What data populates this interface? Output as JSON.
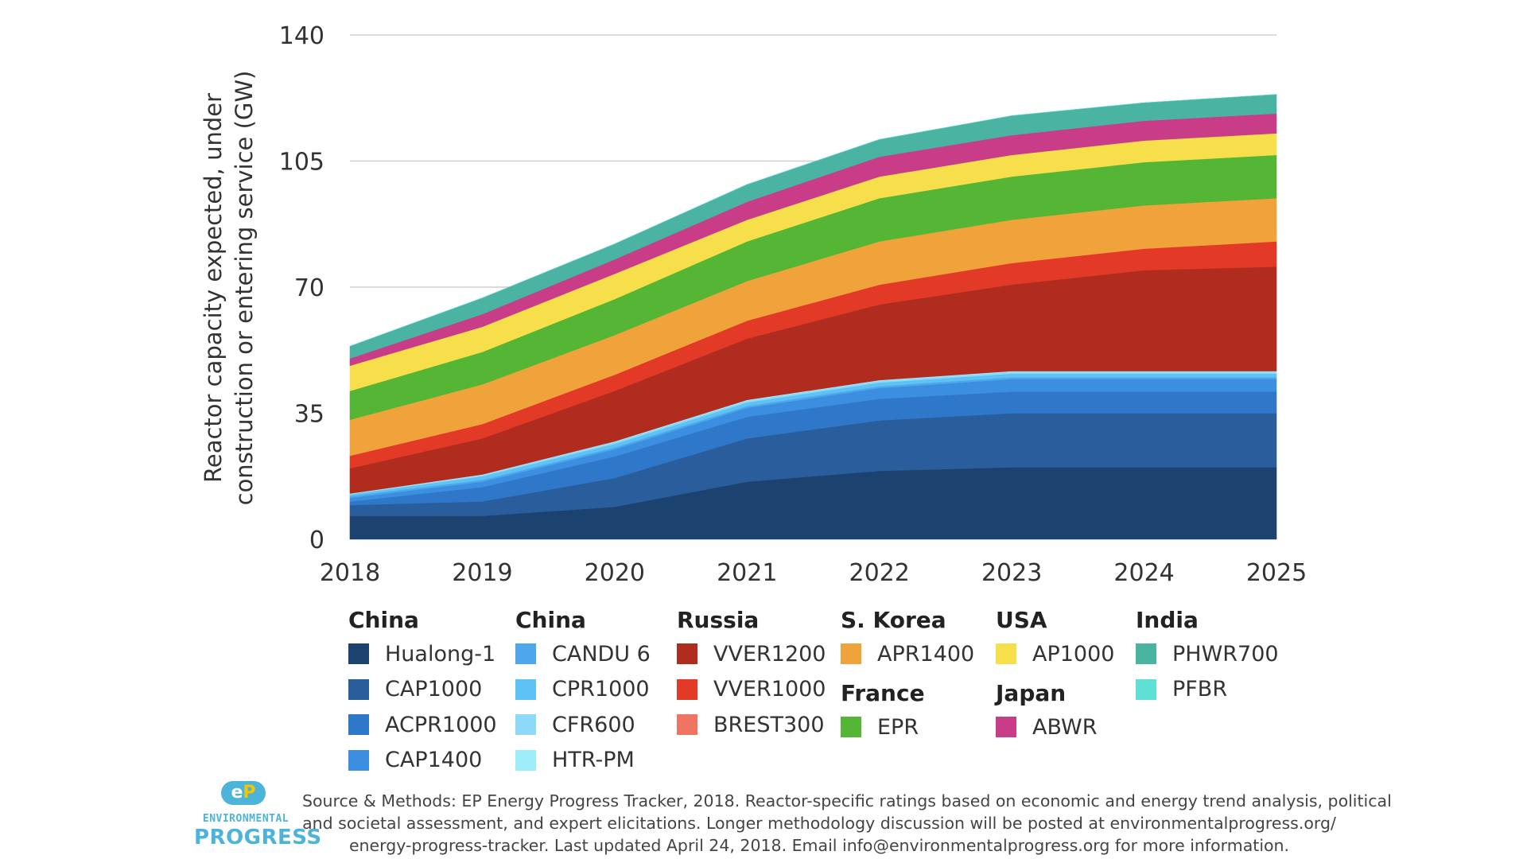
{
  "chart_data": {
    "type": "area",
    "stacked": true,
    "x": [
      2018,
      2019,
      2020,
      2021,
      2022,
      2023,
      2024,
      2025
    ],
    "x_tick_labels": [
      "2018",
      "2019",
      "2020",
      "2021",
      "2022",
      "2023",
      "2024",
      "2025"
    ],
    "ylabel_line1": "Reactor capacity expected, under",
    "ylabel_line2": "construction or entering service (GW)",
    "ylim": [
      0,
      140
    ],
    "y_ticks": [
      0,
      35,
      70,
      105,
      140
    ],
    "y_tick_labels": [
      "0",
      "35",
      "70",
      "105",
      "140"
    ],
    "grid": true,
    "series": [
      {
        "name": "Hualong-1",
        "country": "China",
        "color": "#1c4370",
        "values": [
          6.5,
          6.5,
          9,
          16,
          19,
          20,
          20,
          20
        ]
      },
      {
        "name": "CAP1000",
        "country": "China",
        "color": "#2a5d9c",
        "values": [
          3,
          4,
          8,
          12,
          14,
          15,
          15,
          15
        ]
      },
      {
        "name": "ACPR1000",
        "country": "China",
        "color": "#2f77c9",
        "values": [
          1,
          4,
          6,
          6,
          6,
          6,
          6,
          6
        ]
      },
      {
        "name": "CAP1400",
        "country": "China",
        "color": "#3c8fe0",
        "values": [
          1,
          1.5,
          2,
          2.5,
          3,
          3.5,
          3.5,
          3.5
        ]
      },
      {
        "name": "CANDU 6",
        "country": "China",
        "color": "#4ea6ec",
        "values": [
          0.5,
          0.5,
          0.5,
          0.5,
          0.5,
          0.5,
          0.5,
          0.5
        ]
      },
      {
        "name": "CPR1000",
        "country": "China",
        "color": "#5ec2f5",
        "values": [
          0.5,
          1,
          1,
          1,
          1,
          1,
          1,
          1
        ]
      },
      {
        "name": "CFR600",
        "country": "China",
        "color": "#8ed8f8",
        "values": [
          0,
          0.3,
          0.5,
          0.5,
          0.5,
          0.5,
          0.5,
          0.5
        ]
      },
      {
        "name": "HTR-PM",
        "country": "China",
        "color": "#9fecfb",
        "values": [
          0.2,
          0.2,
          0.2,
          0.2,
          0.2,
          0.2,
          0.2,
          0.2
        ]
      },
      {
        "name": "VVER1200",
        "country": "Russia",
        "color": "#b02c1e",
        "values": [
          7,
          10,
          14,
          17,
          21,
          24,
          28,
          29
        ]
      },
      {
        "name": "VVER1000",
        "country": "Russia",
        "color": "#e23a26",
        "values": [
          3.5,
          4,
          4.5,
          5,
          5.5,
          6,
          6,
          7
        ]
      },
      {
        "name": "BREST300",
        "country": "Russia",
        "color": "#ef7462",
        "values": [
          0,
          0,
          0,
          0,
          0,
          0,
          0,
          0
        ]
      },
      {
        "name": "APR1400",
        "country": "S. Korea",
        "color": "#f1a33b",
        "values": [
          10,
          11,
          11,
          11,
          12,
          12,
          12,
          12
        ]
      },
      {
        "name": "EPR",
        "country": "France",
        "color": "#55b535",
        "values": [
          8,
          9,
          10,
          11,
          12,
          12,
          12,
          12
        ]
      },
      {
        "name": "AP1000",
        "country": "USA",
        "color": "#f7df4c",
        "values": [
          7,
          7,
          7,
          6,
          6,
          6,
          6,
          6
        ]
      },
      {
        "name": "ABWR",
        "country": "Japan",
        "color": "#c93c87",
        "values": [
          2,
          3.5,
          4,
          5,
          5.5,
          5.5,
          5.5,
          5.5
        ]
      },
      {
        "name": "PHWR700",
        "country": "India",
        "color": "#4ab3a2",
        "values": [
          3.4,
          4.5,
          4.3,
          4.8,
          4.8,
          5.4,
          5,
          5.3
        ]
      },
      {
        "name": "PFBR",
        "country": "India",
        "color": "#5fe0d5",
        "values": [
          0,
          0,
          0,
          0,
          0,
          0,
          0,
          0
        ]
      }
    ]
  },
  "legend": {
    "groups": [
      {
        "heading": "China",
        "items": [
          "Hualong-1",
          "CAP1000",
          "ACPR1000",
          "CAP1400"
        ]
      },
      {
        "heading": "China",
        "items": [
          "CANDU 6",
          "CPR1000",
          "CFR600",
          "HTR-PM"
        ]
      },
      {
        "heading": "Russia",
        "items": [
          "VVER1200",
          "VVER1000",
          "BREST300"
        ]
      },
      {
        "heading": "S. Korea",
        "items": [
          "APR1400"
        ]
      },
      {
        "heading": "France",
        "items": [
          "EPR"
        ]
      },
      {
        "heading": "USA",
        "items": [
          "AP1000"
        ]
      },
      {
        "heading": "Japan",
        "items": [
          "ABWR"
        ]
      },
      {
        "heading": "India",
        "items": [
          "PHWR700",
          "PFBR"
        ]
      }
    ]
  },
  "logo": {
    "mark_e": "e",
    "mark_p": "P",
    "line1": "ENVIRONMENTAL",
    "line2": "PROGRESS"
  },
  "source": {
    "line1": "Source & Methods: EP Energy Progress Tracker, 2018. Reactor-specific ratings based on economic and energy trend analysis, political",
    "line2": "and societal assessment, and expert elicitations. Longer methodology discussion will be posted at environmentalprogress.org/",
    "line3": "energy-progress-tracker. Last updated April 24, 2018. Email info@environmentalprogress.org for more information."
  }
}
